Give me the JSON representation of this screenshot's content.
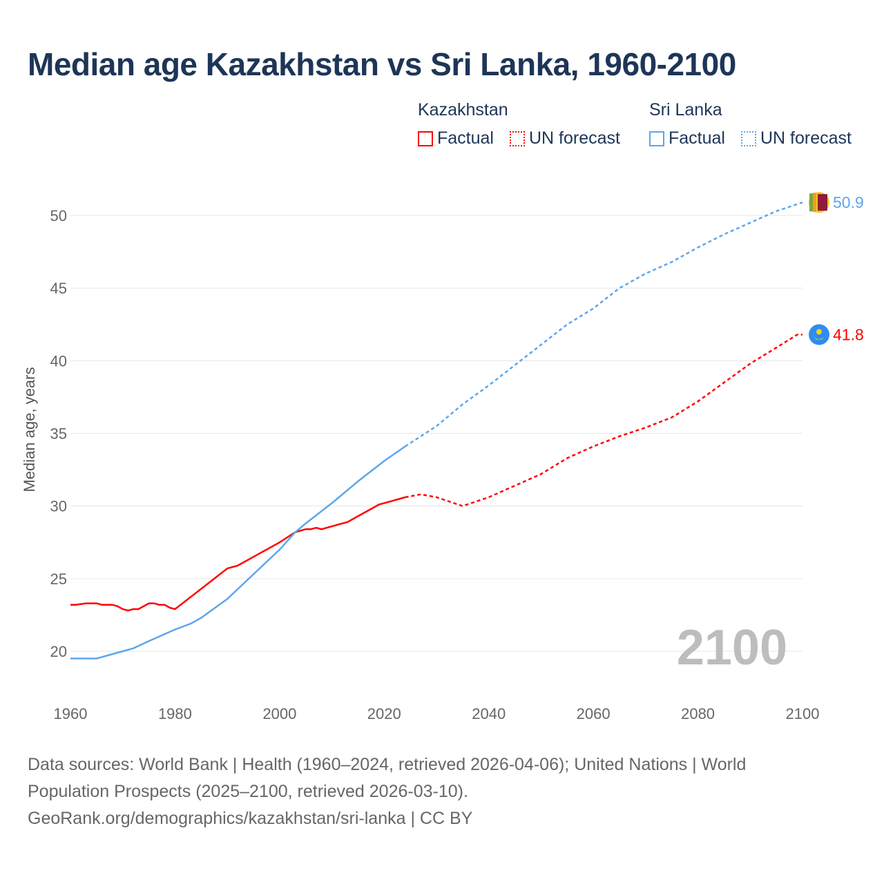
{
  "title": "Median age Kazakhstan vs Sri Lanka, 1960-2100",
  "legend": {
    "groups": [
      {
        "name": "Kazakhstan",
        "factual": "Factual",
        "forecast": "UN forecast",
        "color": "#ff0000"
      },
      {
        "name": "Sri Lanka",
        "factual": "Factual",
        "forecast": "UN forecast",
        "color": "#5ea5ec"
      }
    ]
  },
  "year_watermark": "2100",
  "footer": {
    "line1": "Data sources: World Bank | Health (1960–2024, retrieved 2026-04-06); United Nations | World",
    "line2": "Population Prospects (2025–2100, retrieved 2026-03-10).",
    "line3": "GeoRank.org/demographics/kazakhstan/sri-lanka | CC BY"
  },
  "chart_data": {
    "type": "line",
    "title": "Median age Kazakhstan vs Sri Lanka, 1960-2100",
    "xlabel": "",
    "ylabel": "Median age, years",
    "xlim": [
      1960,
      2100
    ],
    "ylim": [
      17.5,
      52.5
    ],
    "xticks": [
      1960,
      1980,
      2000,
      2020,
      2040,
      2060,
      2080,
      2100
    ],
    "yticks": [
      20,
      25,
      30,
      35,
      40,
      45,
      50
    ],
    "grid": true,
    "forecast_start": 2024,
    "series": [
      {
        "name": "Kazakhstan",
        "color": "#ff0000",
        "end_label": "41.8",
        "x": [
          1960,
          1961,
          1963,
          1965,
          1966,
          1968,
          1969,
          1970,
          1971,
          1972,
          1973,
          1975,
          1976,
          1977,
          1978,
          1979,
          1980,
          1985,
          1990,
          1992,
          1995,
          2000,
          2003,
          2005,
          2006,
          2007,
          2008,
          2013,
          2019,
          2021,
          2024,
          2027,
          2030,
          2035,
          2040,
          2045,
          2050,
          2055,
          2060,
          2065,
          2070,
          2075,
          2080,
          2085,
          2090,
          2095,
          2099,
          2100
        ],
        "y": [
          23.2,
          23.2,
          23.3,
          23.3,
          23.2,
          23.2,
          23.1,
          22.9,
          22.8,
          22.9,
          22.9,
          23.3,
          23.3,
          23.2,
          23.2,
          23.0,
          22.9,
          24.3,
          25.7,
          25.9,
          26.5,
          27.5,
          28.2,
          28.4,
          28.4,
          28.5,
          28.4,
          28.9,
          30.1,
          30.3,
          30.6,
          30.8,
          30.6,
          30.0,
          30.6,
          31.4,
          32.2,
          33.3,
          34.1,
          34.8,
          35.4,
          36.1,
          37.2,
          38.5,
          39.8,
          40.9,
          41.8,
          41.8
        ]
      },
      {
        "name": "Sri Lanka",
        "color": "#5ea5ec",
        "end_label": "50.9",
        "x": [
          1960,
          1965,
          1970,
          1972,
          1975,
          1980,
          1983,
          1985,
          1990,
          1995,
          2000,
          2003,
          2005,
          2010,
          2015,
          2020,
          2024,
          2030,
          2035,
          2040,
          2045,
          2050,
          2055,
          2060,
          2065,
          2070,
          2075,
          2080,
          2085,
          2090,
          2095,
          2100
        ],
        "y": [
          19.5,
          19.5,
          20.0,
          20.2,
          20.7,
          21.5,
          21.9,
          22.3,
          23.6,
          25.3,
          27.0,
          28.2,
          28.8,
          30.2,
          31.7,
          33.1,
          34.1,
          35.5,
          37.0,
          38.3,
          39.7,
          41.1,
          42.5,
          43.6,
          45.0,
          46.0,
          46.8,
          47.8,
          48.7,
          49.5,
          50.3,
          50.9
        ]
      }
    ]
  }
}
